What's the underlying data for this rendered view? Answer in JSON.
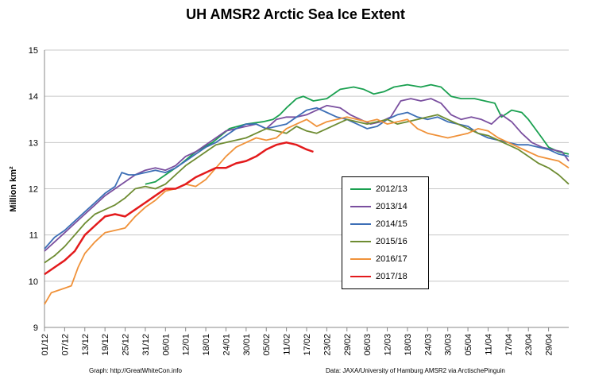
{
  "chart_data": {
    "type": "line",
    "title": "UH AMSR2 Arctic Sea Ice Extent",
    "ylabel": "Million km²",
    "xlabel": "",
    "ylim": [
      9,
      15
    ],
    "yticks": [
      "9",
      "10",
      "11",
      "12",
      "13",
      "14",
      "15"
    ],
    "xticks": [
      "01/12",
      "07/12",
      "13/12",
      "19/12",
      "25/12",
      "31/12",
      "06/01",
      "12/01",
      "18/01",
      "24/01",
      "30/01",
      "05/02",
      "11/02",
      "17/02",
      "23/02",
      "29/02",
      "06/03",
      "12/03",
      "18/03",
      "24/03",
      "30/03",
      "05/04",
      "11/04",
      "17/04",
      "23/04",
      "29/04"
    ],
    "x_unit_days_from_01_12": [
      0,
      150
    ],
    "grid": true,
    "legend_placement": "center-right",
    "series": [
      {
        "name": "2012/13",
        "color": "#1aa050",
        "points": [
          [
            30,
            12.1
          ],
          [
            33,
            12.15
          ],
          [
            36,
            12.3
          ],
          [
            40,
            12.5
          ],
          [
            45,
            12.8
          ],
          [
            50,
            13.0
          ],
          [
            55,
            13.3
          ],
          [
            60,
            13.4
          ],
          [
            65,
            13.45
          ],
          [
            68,
            13.5
          ],
          [
            70,
            13.6
          ],
          [
            72,
            13.75
          ],
          [
            75,
            13.95
          ],
          [
            77,
            14.0
          ],
          [
            80,
            13.9
          ],
          [
            84,
            13.95
          ],
          [
            88,
            14.15
          ],
          [
            92,
            14.2
          ],
          [
            95,
            14.15
          ],
          [
            98,
            14.05
          ],
          [
            101,
            14.1
          ],
          [
            104,
            14.2
          ],
          [
            108,
            14.25
          ],
          [
            112,
            14.2
          ],
          [
            115,
            14.25
          ],
          [
            118,
            14.2
          ],
          [
            121,
            14.0
          ],
          [
            124,
            13.95
          ],
          [
            128,
            13.95
          ],
          [
            131,
            13.9
          ],
          [
            134,
            13.85
          ],
          [
            136,
            13.55
          ],
          [
            139,
            13.7
          ],
          [
            142,
            13.65
          ],
          [
            144,
            13.5
          ],
          [
            146,
            13.3
          ],
          [
            148,
            13.1
          ],
          [
            150,
            12.9
          ],
          [
            153,
            12.8
          ],
          [
            156,
            12.75
          ]
        ]
      },
      {
        "name": "2013/14",
        "color": "#7a4f9f",
        "points": [
          [
            0,
            10.65
          ],
          [
            3,
            10.85
          ],
          [
            6,
            11.05
          ],
          [
            9,
            11.25
          ],
          [
            12,
            11.45
          ],
          [
            15,
            11.65
          ],
          [
            18,
            11.85
          ],
          [
            21,
            12.0
          ],
          [
            24,
            12.15
          ],
          [
            27,
            12.3
          ],
          [
            30,
            12.4
          ],
          [
            33,
            12.45
          ],
          [
            36,
            12.4
          ],
          [
            39,
            12.5
          ],
          [
            42,
            12.7
          ],
          [
            45,
            12.8
          ],
          [
            48,
            12.95
          ],
          [
            51,
            13.1
          ],
          [
            54,
            13.25
          ],
          [
            57,
            13.3
          ],
          [
            60,
            13.35
          ],
          [
            63,
            13.4
          ],
          [
            66,
            13.3
          ],
          [
            69,
            13.5
          ],
          [
            72,
            13.55
          ],
          [
            75,
            13.55
          ],
          [
            78,
            13.6
          ],
          [
            81,
            13.7
          ],
          [
            84,
            13.8
          ],
          [
            88,
            13.75
          ],
          [
            91,
            13.6
          ],
          [
            94,
            13.5
          ],
          [
            97,
            13.4
          ],
          [
            100,
            13.45
          ],
          [
            103,
            13.55
          ],
          [
            106,
            13.9
          ],
          [
            109,
            13.95
          ],
          [
            112,
            13.9
          ],
          [
            115,
            13.95
          ],
          [
            118,
            13.85
          ],
          [
            121,
            13.6
          ],
          [
            124,
            13.5
          ],
          [
            127,
            13.55
          ],
          [
            130,
            13.5
          ],
          [
            133,
            13.4
          ],
          [
            136,
            13.6
          ],
          [
            139,
            13.45
          ],
          [
            142,
            13.2
          ],
          [
            145,
            13.0
          ],
          [
            148,
            12.9
          ],
          [
            151,
            12.85
          ],
          [
            154,
            12.8
          ],
          [
            156,
            12.6
          ]
        ]
      },
      {
        "name": "2014/15",
        "color": "#3d6fb6",
        "points": [
          [
            0,
            10.7
          ],
          [
            3,
            10.95
          ],
          [
            6,
            11.1
          ],
          [
            9,
            11.3
          ],
          [
            12,
            11.5
          ],
          [
            15,
            11.7
          ],
          [
            18,
            11.9
          ],
          [
            21,
            12.05
          ],
          [
            23,
            12.35
          ],
          [
            25,
            12.3
          ],
          [
            27,
            12.3
          ],
          [
            30,
            12.35
          ],
          [
            33,
            12.4
          ],
          [
            36,
            12.35
          ],
          [
            39,
            12.45
          ],
          [
            42,
            12.6
          ],
          [
            45,
            12.75
          ],
          [
            48,
            12.9
          ],
          [
            51,
            13.0
          ],
          [
            54,
            13.15
          ],
          [
            57,
            13.3
          ],
          [
            60,
            13.4
          ],
          [
            63,
            13.4
          ],
          [
            66,
            13.3
          ],
          [
            69,
            13.35
          ],
          [
            72,
            13.4
          ],
          [
            75,
            13.55
          ],
          [
            78,
            13.7
          ],
          [
            81,
            13.75
          ],
          [
            84,
            13.65
          ],
          [
            87,
            13.55
          ],
          [
            90,
            13.5
          ],
          [
            93,
            13.4
          ],
          [
            96,
            13.3
          ],
          [
            99,
            13.35
          ],
          [
            102,
            13.5
          ],
          [
            105,
            13.6
          ],
          [
            108,
            13.65
          ],
          [
            111,
            13.55
          ],
          [
            114,
            13.5
          ],
          [
            117,
            13.55
          ],
          [
            120,
            13.45
          ],
          [
            123,
            13.4
          ],
          [
            126,
            13.35
          ],
          [
            129,
            13.2
          ],
          [
            132,
            13.1
          ],
          [
            135,
            13.05
          ],
          [
            138,
            13.0
          ],
          [
            141,
            12.95
          ],
          [
            144,
            12.95
          ],
          [
            147,
            12.9
          ],
          [
            150,
            12.85
          ],
          [
            153,
            12.75
          ],
          [
            156,
            12.7
          ]
        ]
      },
      {
        "name": "2015/16",
        "color": "#6e8c32",
        "points": [
          [
            0,
            10.4
          ],
          [
            3,
            10.55
          ],
          [
            6,
            10.75
          ],
          [
            9,
            11.0
          ],
          [
            12,
            11.25
          ],
          [
            15,
            11.45
          ],
          [
            18,
            11.55
          ],
          [
            21,
            11.65
          ],
          [
            24,
            11.8
          ],
          [
            27,
            12.0
          ],
          [
            30,
            12.05
          ],
          [
            33,
            12.0
          ],
          [
            36,
            12.1
          ],
          [
            39,
            12.3
          ],
          [
            42,
            12.5
          ],
          [
            45,
            12.65
          ],
          [
            48,
            12.8
          ],
          [
            51,
            12.95
          ],
          [
            54,
            13.0
          ],
          [
            57,
            13.05
          ],
          [
            60,
            13.1
          ],
          [
            63,
            13.2
          ],
          [
            66,
            13.3
          ],
          [
            69,
            13.25
          ],
          [
            72,
            13.2
          ],
          [
            75,
            13.35
          ],
          [
            78,
            13.25
          ],
          [
            81,
            13.2
          ],
          [
            84,
            13.3
          ],
          [
            87,
            13.4
          ],
          [
            90,
            13.5
          ],
          [
            93,
            13.45
          ],
          [
            96,
            13.4
          ],
          [
            99,
            13.45
          ],
          [
            102,
            13.5
          ],
          [
            105,
            13.4
          ],
          [
            108,
            13.45
          ],
          [
            111,
            13.5
          ],
          [
            114,
            13.55
          ],
          [
            117,
            13.6
          ],
          [
            120,
            13.5
          ],
          [
            123,
            13.4
          ],
          [
            126,
            13.3
          ],
          [
            129,
            13.2
          ],
          [
            132,
            13.15
          ],
          [
            135,
            13.05
          ],
          [
            138,
            12.95
          ],
          [
            141,
            12.85
          ],
          [
            144,
            12.7
          ],
          [
            147,
            12.55
          ],
          [
            150,
            12.45
          ],
          [
            153,
            12.3
          ],
          [
            156,
            12.1
          ]
        ]
      },
      {
        "name": "2016/17",
        "color": "#f0923a",
        "points": [
          [
            0,
            9.5
          ],
          [
            2,
            9.75
          ],
          [
            4,
            9.8
          ],
          [
            6,
            9.85
          ],
          [
            8,
            9.9
          ],
          [
            10,
            10.3
          ],
          [
            12,
            10.6
          ],
          [
            15,
            10.85
          ],
          [
            18,
            11.05
          ],
          [
            21,
            11.1
          ],
          [
            24,
            11.15
          ],
          [
            27,
            11.4
          ],
          [
            30,
            11.6
          ],
          [
            33,
            11.75
          ],
          [
            36,
            11.95
          ],
          [
            39,
            12.0
          ],
          [
            42,
            12.1
          ],
          [
            45,
            12.05
          ],
          [
            48,
            12.2
          ],
          [
            51,
            12.45
          ],
          [
            54,
            12.7
          ],
          [
            57,
            12.9
          ],
          [
            60,
            13.0
          ],
          [
            63,
            13.1
          ],
          [
            66,
            13.05
          ],
          [
            69,
            13.1
          ],
          [
            72,
            13.3
          ],
          [
            75,
            13.4
          ],
          [
            78,
            13.5
          ],
          [
            81,
            13.35
          ],
          [
            84,
            13.45
          ],
          [
            87,
            13.5
          ],
          [
            90,
            13.55
          ],
          [
            93,
            13.5
          ],
          [
            96,
            13.45
          ],
          [
            99,
            13.5
          ],
          [
            102,
            13.4
          ],
          [
            105,
            13.45
          ],
          [
            108,
            13.5
          ],
          [
            111,
            13.3
          ],
          [
            114,
            13.2
          ],
          [
            117,
            13.15
          ],
          [
            120,
            13.1
          ],
          [
            123,
            13.15
          ],
          [
            126,
            13.2
          ],
          [
            129,
            13.3
          ],
          [
            132,
            13.25
          ],
          [
            135,
            13.1
          ],
          [
            138,
            13.0
          ],
          [
            141,
            12.9
          ],
          [
            144,
            12.8
          ],
          [
            147,
            12.7
          ],
          [
            150,
            12.65
          ],
          [
            153,
            12.6
          ],
          [
            156,
            12.45
          ]
        ]
      },
      {
        "name": "2017/18",
        "color": "#e31a1c",
        "points": [
          [
            0,
            10.15
          ],
          [
            3,
            10.3
          ],
          [
            6,
            10.45
          ],
          [
            9,
            10.65
          ],
          [
            12,
            11.0
          ],
          [
            15,
            11.2
          ],
          [
            18,
            11.4
          ],
          [
            21,
            11.45
          ],
          [
            24,
            11.4
          ],
          [
            27,
            11.55
          ],
          [
            30,
            11.7
          ],
          [
            33,
            11.85
          ],
          [
            36,
            12.0
          ],
          [
            39,
            12.0
          ],
          [
            42,
            12.1
          ],
          [
            45,
            12.25
          ],
          [
            48,
            12.35
          ],
          [
            51,
            12.45
          ],
          [
            54,
            12.45
          ],
          [
            57,
            12.55
          ],
          [
            60,
            12.6
          ],
          [
            63,
            12.7
          ],
          [
            66,
            12.85
          ],
          [
            69,
            12.95
          ],
          [
            72,
            13.0
          ],
          [
            75,
            12.95
          ],
          [
            78,
            12.85
          ],
          [
            80,
            12.8
          ]
        ]
      }
    ]
  },
  "footer": {
    "left": "Graph: http://GreatWhiteCon.info",
    "right": "Data: JAXA/University of Hamburg AMSR2 via  ArctischePinguin"
  }
}
